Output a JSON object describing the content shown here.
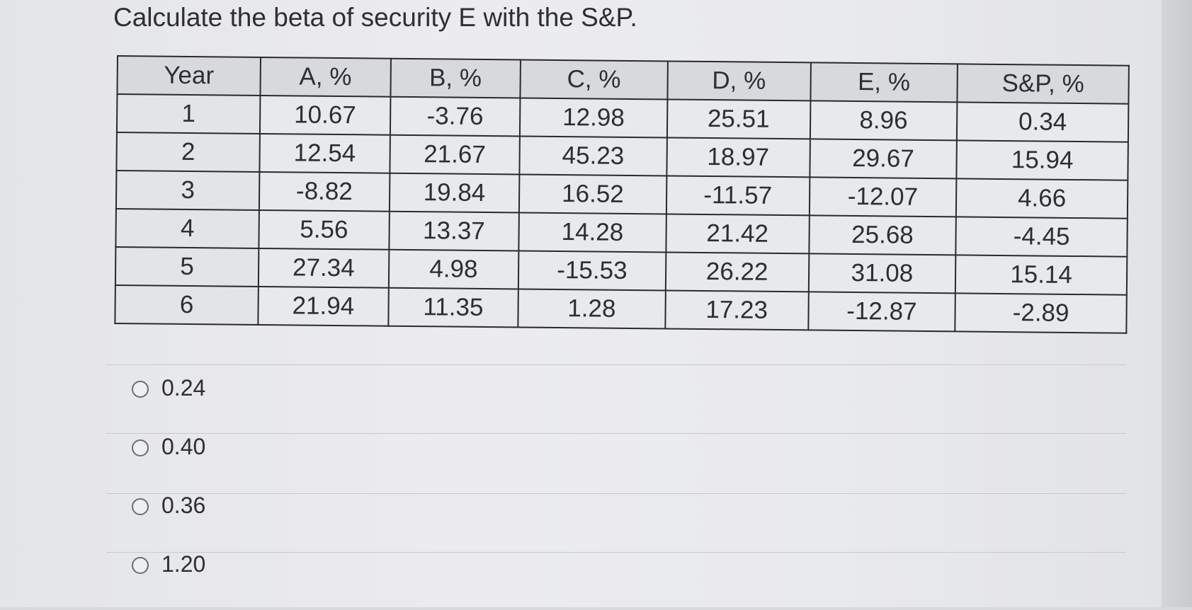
{
  "question": "Calculate the beta of security E with the S&P.",
  "table": {
    "headers": [
      "Year",
      "A, %",
      "B, %",
      "C, %",
      "D, %",
      "E, %",
      "S&P, %"
    ],
    "rows": [
      [
        "1",
        "10.67",
        "-3.76",
        "12.98",
        "25.51",
        "8.96",
        "0.34"
      ],
      [
        "2",
        "12.54",
        "21.67",
        "45.23",
        "18.97",
        "29.67",
        "15.94"
      ],
      [
        "3",
        "-8.82",
        "19.84",
        "16.52",
        "-11.57",
        "-12.07",
        "4.66"
      ],
      [
        "4",
        "5.56",
        "13.37",
        "14.28",
        "21.42",
        "25.68",
        "-4.45"
      ],
      [
        "5",
        "27.34",
        "4.98",
        "-15.53",
        "26.22",
        "31.08",
        "15.14"
      ],
      [
        "6",
        "21.94",
        "11.35",
        "1.28",
        "17.23",
        "-12.87",
        "-2.89"
      ]
    ]
  },
  "options": [
    "0.24",
    "0.40",
    "0.36",
    "1.20"
  ]
}
